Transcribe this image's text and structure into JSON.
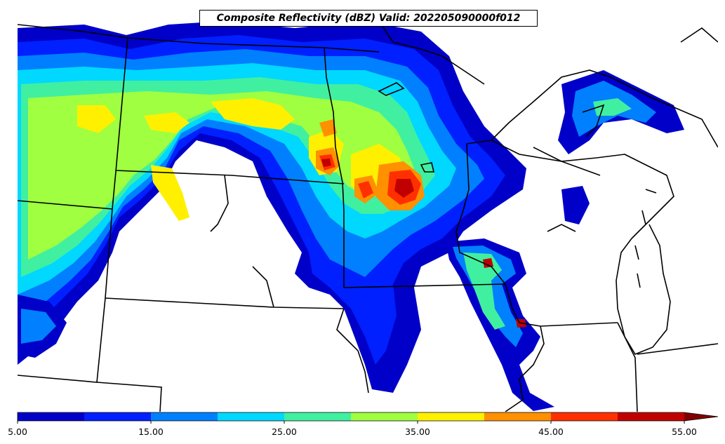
{
  "title": "Composite Reflectivity (dBZ) Valid: 202205090000f012",
  "colorbar": {
    "min": 5.0,
    "max": 55.0,
    "extend": "max",
    "bin_width": 5,
    "colors": [
      "#0000c8",
      "#0020ff",
      "#0080ff",
      "#00d8ff",
      "#40f0a0",
      "#a0ff40",
      "#fff000",
      "#ff9000",
      "#ff3000",
      "#c00000"
    ],
    "extend_color": "#800000",
    "ticks": [
      "5.00",
      "15.00",
      "25.00",
      "35.00",
      "45.00",
      "55.00"
    ]
  },
  "colors": {
    "outline": "#000000",
    "background": "#ffffff"
  }
}
